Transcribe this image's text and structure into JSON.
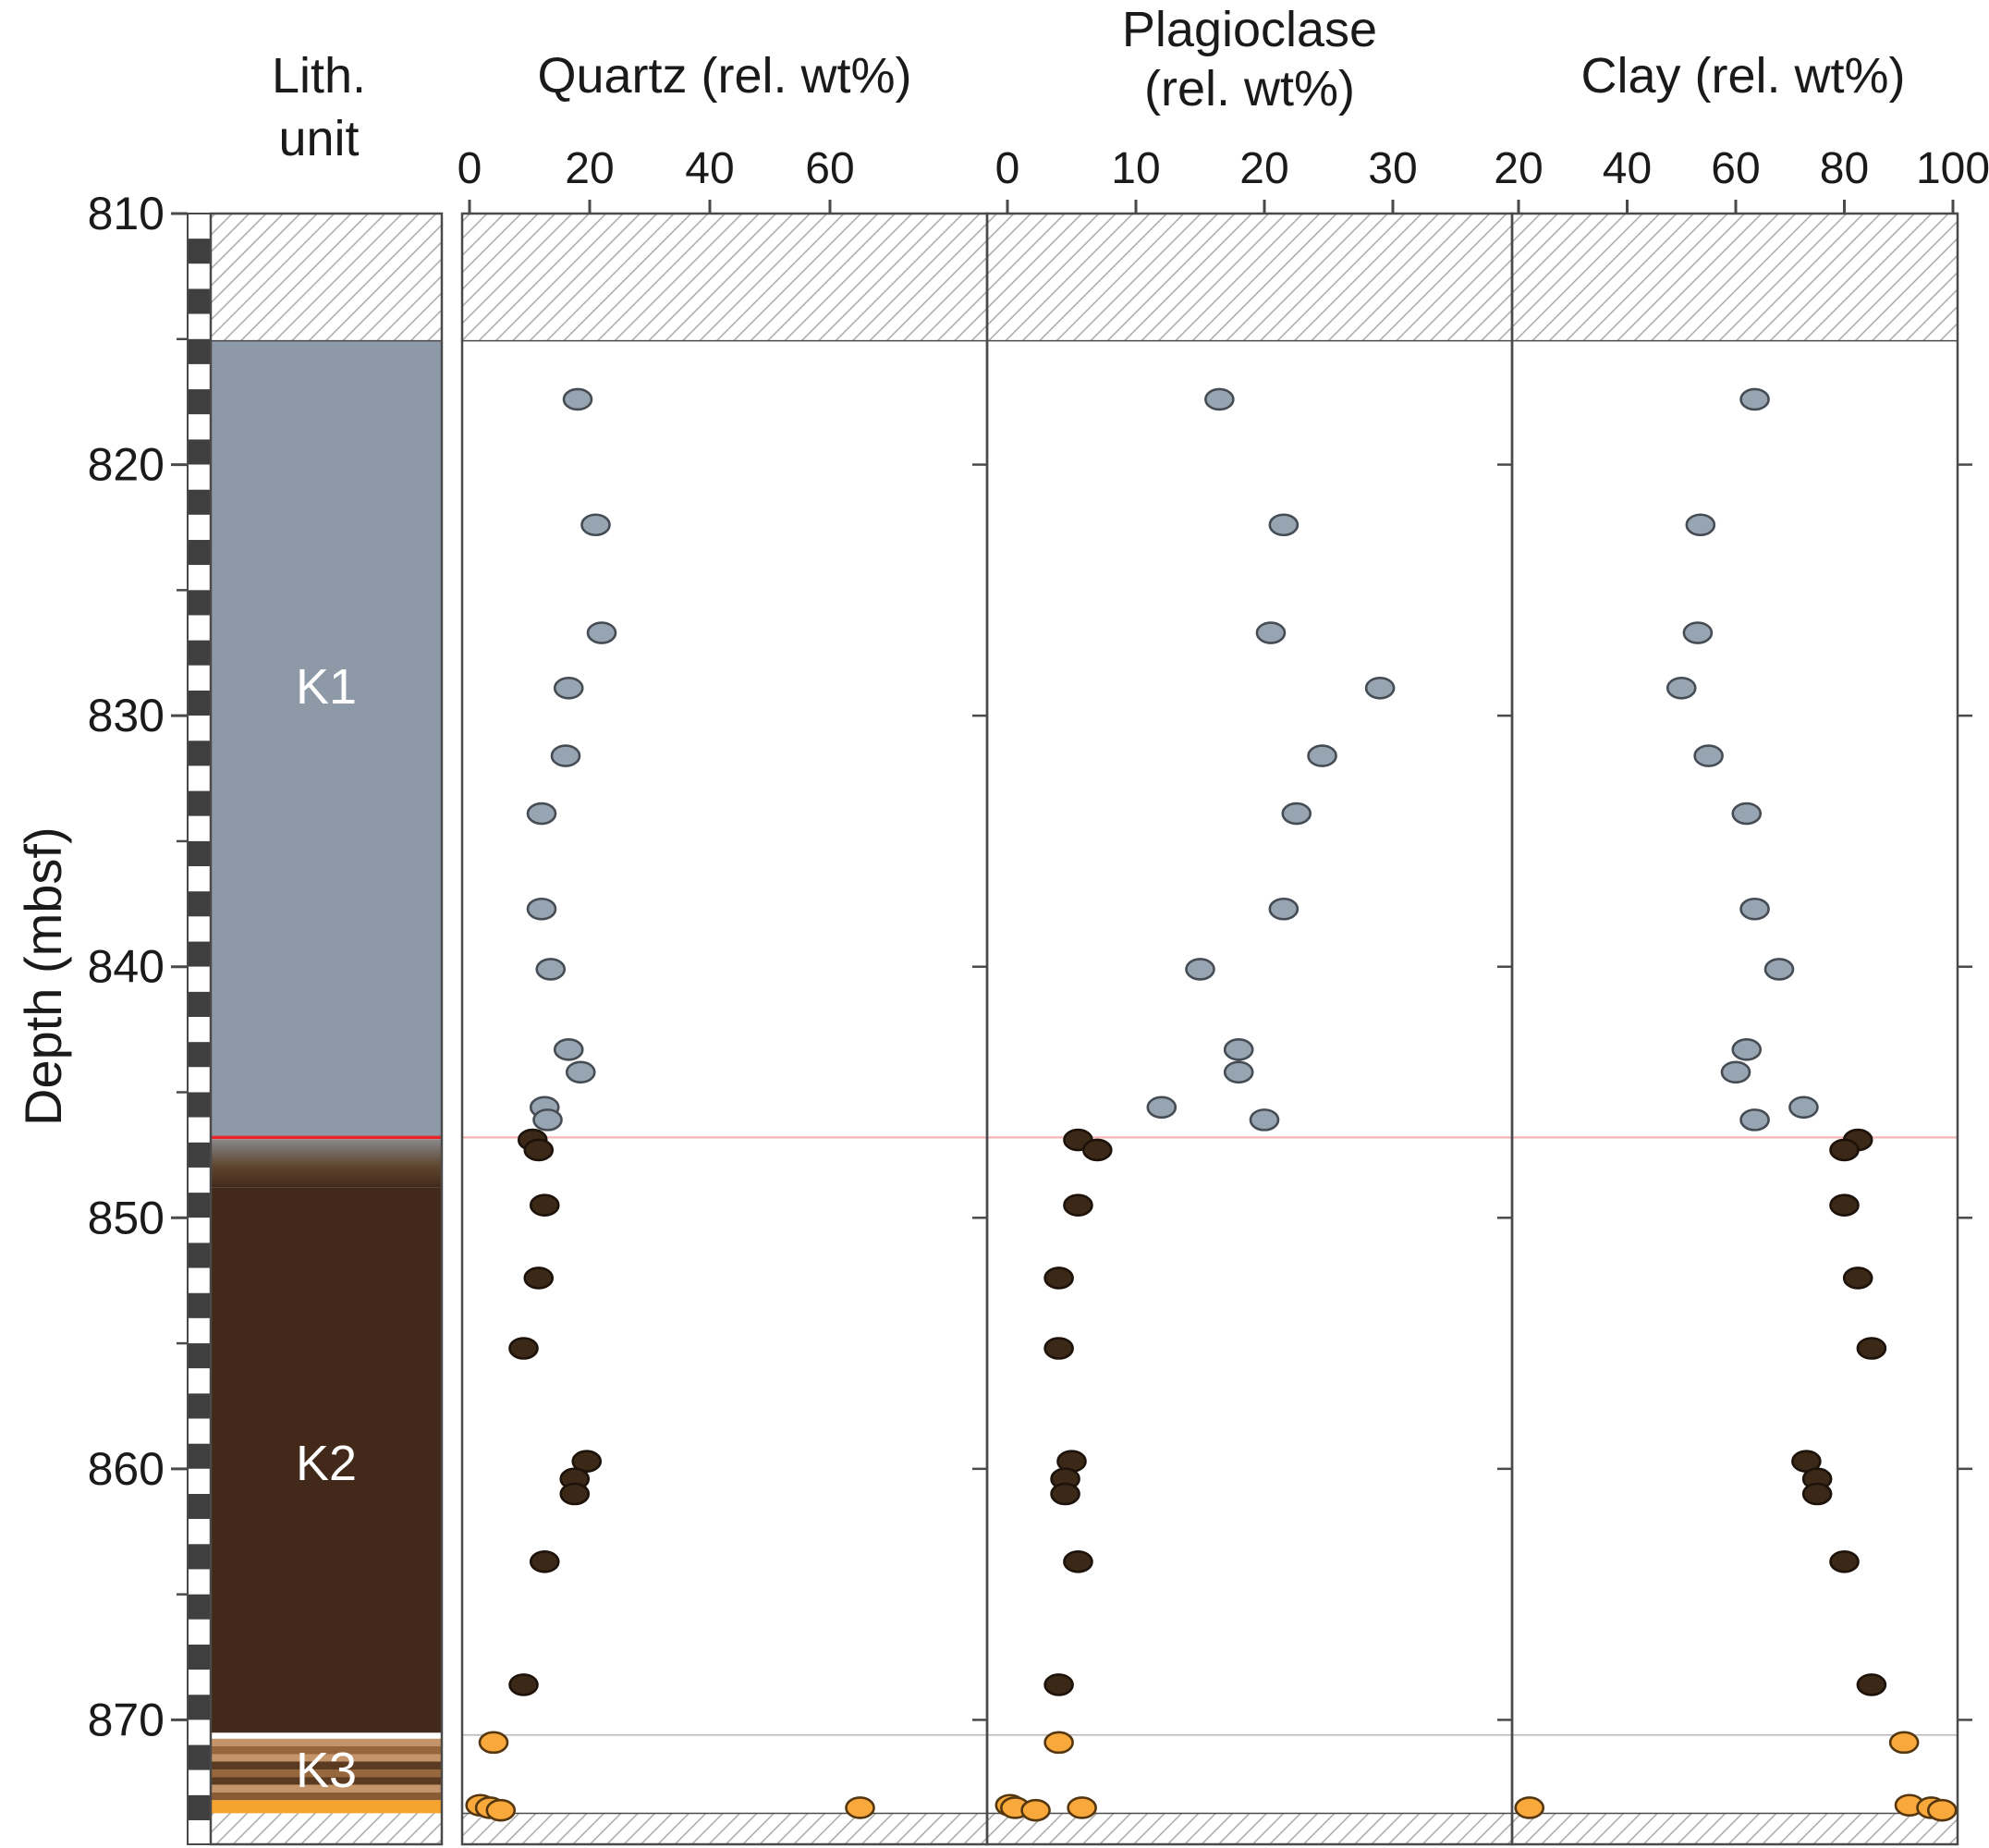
{
  "figure": {
    "lith_column_title_line1": "Lith.",
    "lith_column_title_line2": "unit"
  },
  "chart_data": {
    "type": "scatter",
    "orientation": "depth-profile",
    "y_axis": {
      "label": "Depth (mbsf)",
      "unit": "mbsf",
      "min": 810,
      "max": 875,
      "major_ticks": [
        810,
        820,
        830,
        840,
        850,
        860,
        870
      ],
      "minor_ticks": [
        815,
        825,
        835,
        845,
        855,
        865
      ],
      "right_edge_ticks": [
        820,
        830,
        840,
        850,
        860,
        870
      ]
    },
    "panels": [
      {
        "id": "quartz",
        "field": "quartz",
        "title_lines": [
          "Quartz (rel. wt%)"
        ],
        "ticks": [
          0,
          20,
          40,
          60
        ],
        "xmin": -1.2,
        "xmax": 86.2
      },
      {
        "id": "plagioclase",
        "field": "plagioclase",
        "title_lines": [
          "Plagioclase",
          "(rel. wt%)"
        ],
        "ticks": [
          0,
          10,
          20,
          30
        ],
        "xmin": -1.6,
        "xmax": 39.3
      },
      {
        "id": "clay",
        "field": "clay",
        "title_lines": [
          "Clay (rel. wt%)"
        ],
        "ticks": [
          20,
          40,
          60,
          80,
          100
        ],
        "xmin": 18.8,
        "xmax": 101.2
      }
    ],
    "series": [
      {
        "name": "K1 samples",
        "unit": "K1",
        "fill": "#97a5b3",
        "stroke": "#464c53",
        "points": [
          {
            "depth": 817.4,
            "quartz": 18,
            "plagioclase": 16.5,
            "clay": 63.5
          },
          {
            "depth": 822.4,
            "quartz": 21,
            "plagioclase": 21.5,
            "clay": 53.5
          },
          {
            "depth": 826.7,
            "quartz": 22,
            "plagioclase": 20.5,
            "clay": 53
          },
          {
            "depth": 828.9,
            "quartz": 16.5,
            "plagioclase": 29,
            "clay": 50
          },
          {
            "depth": 831.6,
            "quartz": 16,
            "plagioclase": 24.5,
            "clay": 55
          },
          {
            "depth": 833.9,
            "quartz": 12,
            "plagioclase": 22.5,
            "clay": 62
          },
          {
            "depth": 837.7,
            "quartz": 12,
            "plagioclase": 21.5,
            "clay": 63.5
          },
          {
            "depth": 840.1,
            "quartz": 13.5,
            "plagioclase": 15,
            "clay": 68
          },
          {
            "depth": 843.3,
            "quartz": 16.5,
            "plagioclase": 18,
            "clay": 62
          },
          {
            "depth": 844.2,
            "quartz": 18.5,
            "plagioclase": 18,
            "clay": 60
          },
          {
            "depth": 845.6,
            "quartz": 12.5,
            "plagioclase": 12,
            "clay": 72.5
          },
          {
            "depth": 846.1,
            "quartz": 13,
            "plagioclase": 20,
            "clay": 63.5
          }
        ]
      },
      {
        "name": "K2 samples",
        "unit": "K2",
        "fill": "#3c2817",
        "stroke": "#1d120a",
        "points": [
          {
            "depth": 846.9,
            "quartz": 10.5,
            "plagioclase": 5.5,
            "clay": 82.5
          },
          {
            "depth": 847.3,
            "quartz": 11.5,
            "plagioclase": 7,
            "clay": 80
          },
          {
            "depth": 849.5,
            "quartz": 12.5,
            "plagioclase": 5.5,
            "clay": 80
          },
          {
            "depth": 852.4,
            "quartz": 11.5,
            "plagioclase": 4,
            "clay": 82.5
          },
          {
            "depth": 855.2,
            "quartz": 9,
            "plagioclase": 4,
            "clay": 85
          },
          {
            "depth": 859.7,
            "quartz": 19.5,
            "plagioclase": 5,
            "clay": 73
          },
          {
            "depth": 860.4,
            "quartz": 17.5,
            "plagioclase": 4.5,
            "clay": 75
          },
          {
            "depth": 861.0,
            "quartz": 17.5,
            "plagioclase": 4.5,
            "clay": 75
          },
          {
            "depth": 863.7,
            "quartz": 12.5,
            "plagioclase": 5.5,
            "clay": 80
          },
          {
            "depth": 868.6,
            "quartz": 9,
            "plagioclase": 4,
            "clay": 85
          }
        ]
      },
      {
        "name": "K3 samples",
        "unit": "K3",
        "fill": "#f9a93c",
        "stroke": "#54360f",
        "points": [
          {
            "depth": 870.9,
            "quartz": 4,
            "plagioclase": 4,
            "clay": 91
          },
          {
            "depth": 873.4,
            "quartz": 1.8,
            "plagioclase": 0.2,
            "clay": 92
          },
          {
            "depth": 873.5,
            "quartz": 3.4,
            "plagioclase": 0.6,
            "clay": 96
          },
          {
            "depth": 873.6,
            "quartz": 5.2,
            "plagioclase": 2.2,
            "clay": 98
          },
          {
            "depth": 873.5,
            "quartz": 65,
            "plagioclase": 5.8,
            "clay": 22
          }
        ]
      }
    ],
    "reference_lines": [
      {
        "name": "K1-K2 boundary",
        "depth": 846.8,
        "column_color": "#e8252b",
        "panel_color": "#f5b6b6"
      },
      {
        "name": "K2-K3 boundary",
        "depth": 870.6,
        "column_color": "#ffffff",
        "panel_color": "#bdbdbd"
      }
    ],
    "no_recovery_zones": [
      {
        "top": 810,
        "bottom": 815.07
      },
      {
        "top": 873.72,
        "bottom": 875.0
      }
    ],
    "lith_units": [
      {
        "label": "K1",
        "top": 815.07,
        "bottom": 846.77,
        "color": "#8d99a7"
      },
      {
        "label": "K2",
        "top": 846.87,
        "bottom": 870.55,
        "color": "#42291a",
        "transition_from": "#87888b",
        "transition_bottom": 848.8
      },
      {
        "label": "K3",
        "top": 870.75,
        "bottom": 873.2,
        "bands": [
          "#c4946a",
          "#96673c",
          "#c4946a",
          "#5a3a20",
          "#96673c",
          "#5a3a20",
          "#c4946a",
          "#8a5c33"
        ]
      },
      {
        "label": "",
        "top": 873.2,
        "bottom": 873.72,
        "color": "#f6a42e"
      }
    ],
    "colors": {
      "axis": "#4a4a4a",
      "checker_dark": "#3f3f3f",
      "hatch_line": "#a3a3a3",
      "tick_label": "#1a1a1a"
    }
  }
}
